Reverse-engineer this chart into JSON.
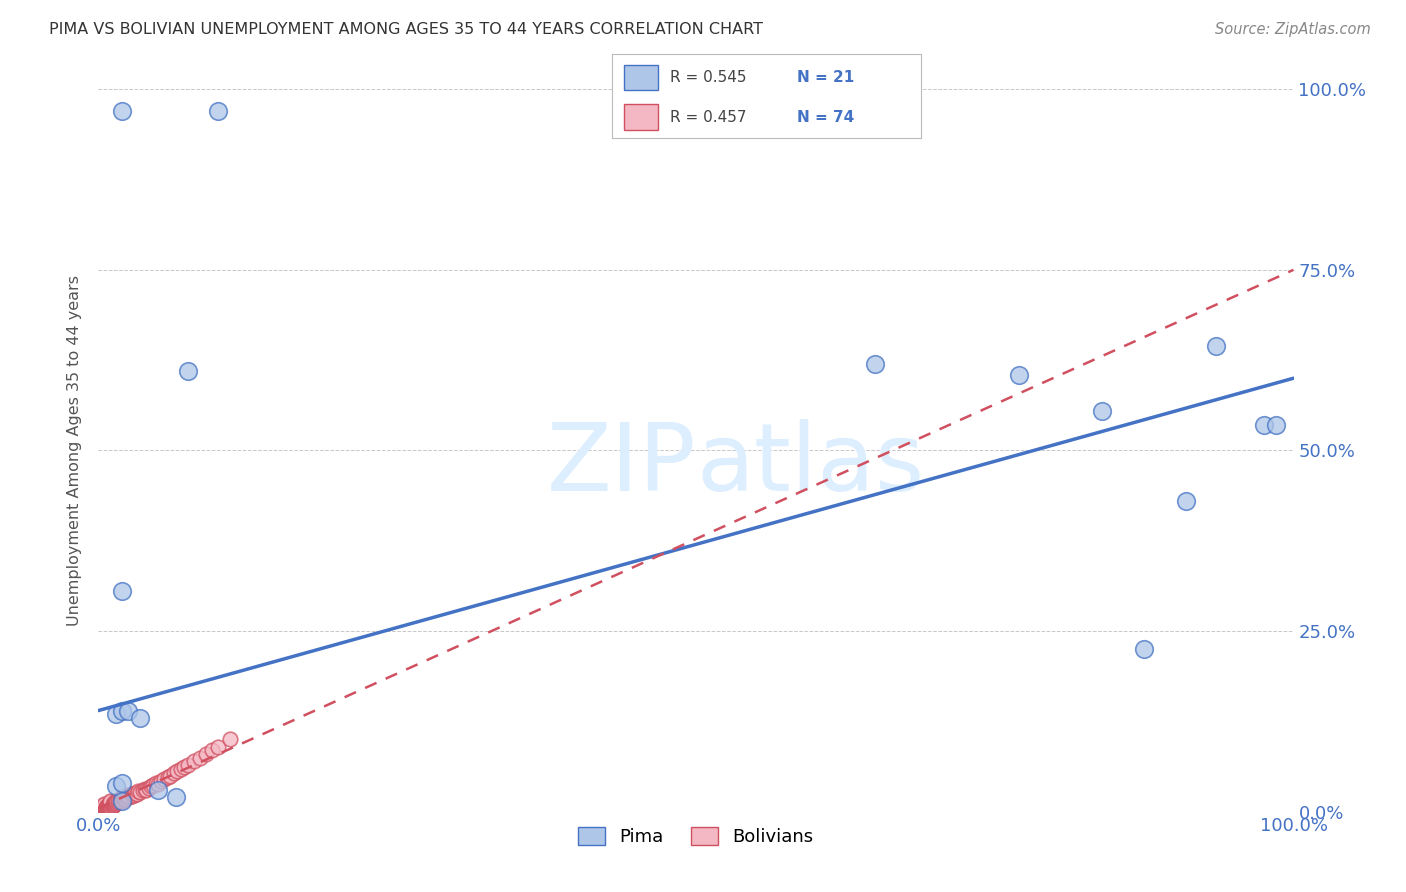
{
  "title": "PIMA VS BOLIVIAN UNEMPLOYMENT AMONG AGES 35 TO 44 YEARS CORRELATION CHART",
  "source": "Source: ZipAtlas.com",
  "ylabel": "Unemployment Among Ages 35 to 44 years",
  "legend_label1": "Pima",
  "legend_label2": "Bolivians",
  "r1": "0.545",
  "n1": "21",
  "r2": "0.457",
  "n2": "74",
  "color_pima_fill": "#aec6e8",
  "color_pima_edge": "#4472c4",
  "color_bolivians_fill": "#f4b8c4",
  "color_bolivians_edge": "#d05060",
  "color_pima_line": "#4472c4",
  "color_bolivians_line": "#d05060",
  "color_text_blue": "#4472c4",
  "color_text_dark": "#555555",
  "background_color": "#ffffff",
  "watermark_color": "#ddeeff",
  "pima_x": [
    0.02,
    0.1,
    0.02,
    0.015,
    0.02,
    0.025,
    0.015,
    0.02,
    0.035,
    0.05,
    0.065,
    0.075,
    0.65,
    0.77,
    0.84,
    0.875,
    0.91,
    0.935,
    0.975,
    0.985,
    0.02
  ],
  "pima_y": [
    0.97,
    0.97,
    0.305,
    0.135,
    0.14,
    0.14,
    0.035,
    0.04,
    0.13,
    0.03,
    0.02,
    0.61,
    0.62,
    0.605,
    0.555,
    0.225,
    0.43,
    0.645,
    0.535,
    0.535,
    0.015
  ],
  "bolivians_x": [
    0.005,
    0.005,
    0.005,
    0.005,
    0.005,
    0.005,
    0.006,
    0.006,
    0.007,
    0.007,
    0.008,
    0.008,
    0.009,
    0.009,
    0.009,
    0.01,
    0.01,
    0.01,
    0.01,
    0.01,
    0.012,
    0.012,
    0.013,
    0.013,
    0.014,
    0.014,
    0.015,
    0.015,
    0.016,
    0.016,
    0.018,
    0.018,
    0.019,
    0.02,
    0.02,
    0.02,
    0.021,
    0.021,
    0.022,
    0.022,
    0.024,
    0.025,
    0.026,
    0.027,
    0.028,
    0.029,
    0.03,
    0.031,
    0.032,
    0.033,
    0.035,
    0.037,
    0.039,
    0.04,
    0.042,
    0.044,
    0.046,
    0.048,
    0.05,
    0.052,
    0.055,
    0.058,
    0.06,
    0.063,
    0.066,
    0.069,
    0.072,
    0.075,
    0.08,
    0.085,
    0.09,
    0.095,
    0.1,
    0.11
  ],
  "bolivians_y": [
    0.005,
    0.006,
    0.007,
    0.008,
    0.009,
    0.01,
    0.005,
    0.007,
    0.006,
    0.008,
    0.007,
    0.009,
    0.006,
    0.008,
    0.01,
    0.007,
    0.009,
    0.011,
    0.013,
    0.015,
    0.008,
    0.011,
    0.009,
    0.012,
    0.01,
    0.013,
    0.012,
    0.015,
    0.013,
    0.016,
    0.015,
    0.018,
    0.016,
    0.015,
    0.018,
    0.02,
    0.017,
    0.02,
    0.018,
    0.022,
    0.02,
    0.023,
    0.021,
    0.024,
    0.022,
    0.025,
    0.023,
    0.026,
    0.025,
    0.028,
    0.027,
    0.03,
    0.032,
    0.03,
    0.033,
    0.035,
    0.037,
    0.04,
    0.038,
    0.042,
    0.045,
    0.048,
    0.05,
    0.053,
    0.056,
    0.059,
    0.062,
    0.065,
    0.07,
    0.075,
    0.08,
    0.085,
    0.09,
    0.1
  ],
  "xlim": [
    0.0,
    1.0
  ],
  "ylim": [
    0.0,
    1.0
  ],
  "pima_line_x": [
    0.0,
    1.0
  ],
  "pima_line_y": [
    0.14,
    0.6
  ],
  "bolivians_line_x": [
    0.0,
    1.0
  ],
  "bolivians_line_y": [
    0.005,
    0.75
  ]
}
